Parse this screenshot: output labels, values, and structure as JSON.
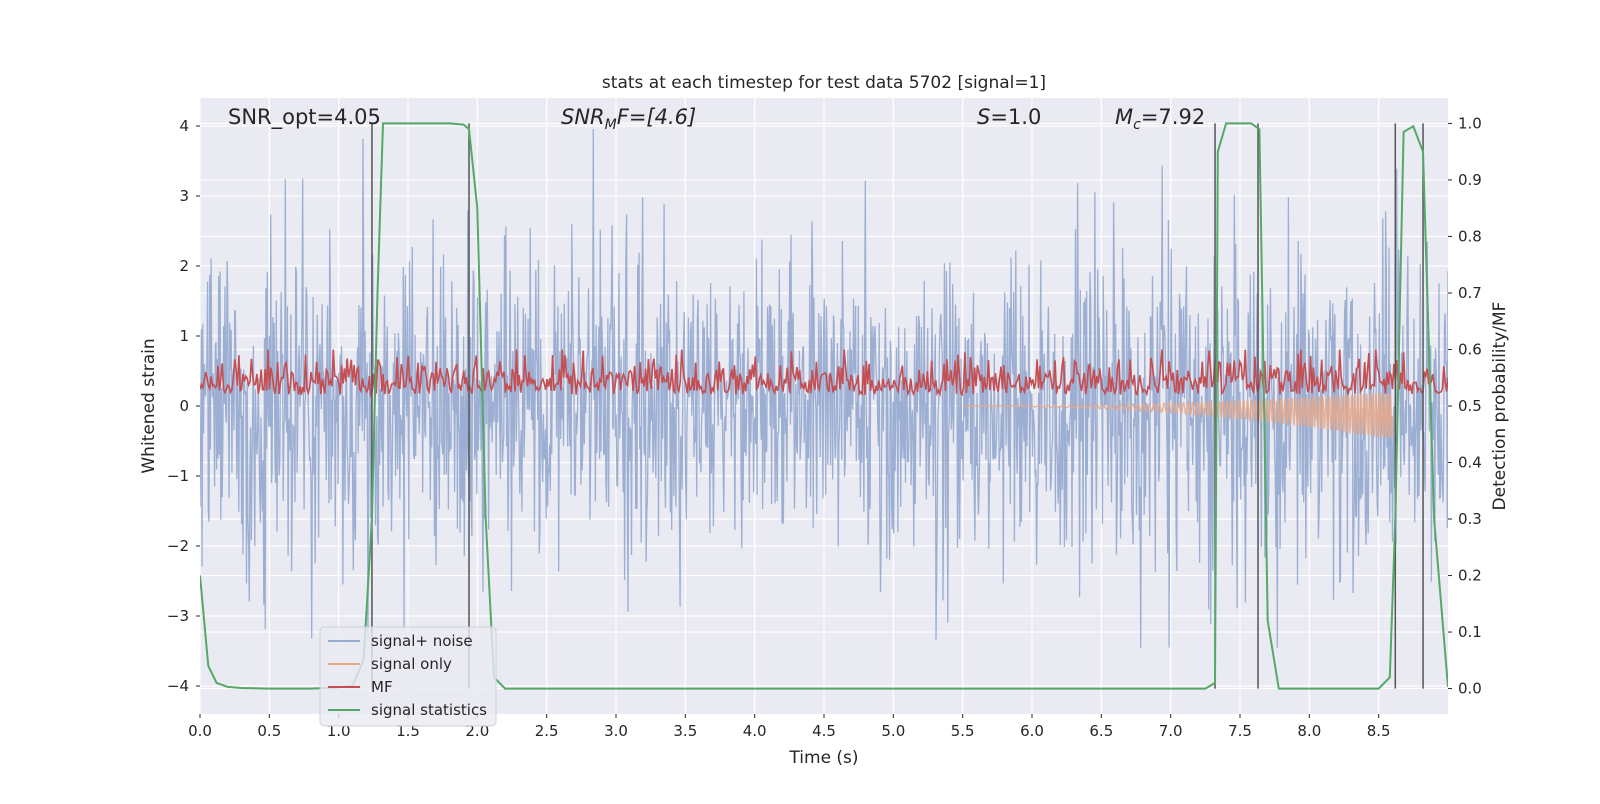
{
  "chart_data": {
    "type": "line",
    "title": "stats at each timestep for test data 5702 [signal=1]",
    "xlabel": "Time (s)",
    "ylabel": "Whitened strain",
    "y2label": "Detection probability/MF",
    "xlim": [
      0.0,
      9.0
    ],
    "ylim": [
      -4.4,
      4.4
    ],
    "y2lim": [
      -0.045,
      1.045
    ],
    "xticks": [
      0.0,
      0.5,
      1.0,
      1.5,
      2.0,
      2.5,
      3.0,
      3.5,
      4.0,
      4.5,
      5.0,
      5.5,
      6.0,
      6.5,
      7.0,
      7.5,
      8.0,
      8.5
    ],
    "xtick_labels": [
      "0.0",
      "0.5",
      "1.0",
      "1.5",
      "2.0",
      "2.5",
      "3.0",
      "3.5",
      "4.0",
      "4.5",
      "5.0",
      "5.5",
      "6.0",
      "6.5",
      "7.0",
      "7.5",
      "8.0",
      "8.5"
    ],
    "yticks": [
      4,
      3,
      2,
      1,
      0,
      -1,
      -2,
      -3,
      -4
    ],
    "ytick_labels": [
      "4",
      "3",
      "2",
      "1",
      "0",
      "−1",
      "−2",
      "−3",
      "−4"
    ],
    "y2ticks": [
      1.0,
      0.9,
      0.8,
      0.7,
      0.6,
      0.5,
      0.4,
      0.3,
      0.2,
      0.1,
      0.0
    ],
    "y2tick_labels": [
      "1.0",
      "0.9",
      "0.8",
      "0.7",
      "0.6",
      "0.5",
      "0.4",
      "0.3",
      "0.2",
      "0.1",
      "0.0"
    ],
    "grid": true,
    "annotations": {
      "snr_opt": "SNR_opt=4.05",
      "snr_mf_base": "SNR",
      "snr_mf_sub": "M",
      "snr_mf_rest": "F=[4.6]",
      "s_label": "S",
      "s_value": "=1.0",
      "mc_base": "M",
      "mc_sub": "c",
      "mc_value": "=7.92"
    },
    "legend": {
      "position": "lower-left",
      "entries": [
        "signal+ noise",
        "signal only",
        "MF",
        "signal statistics"
      ]
    },
    "colors": {
      "background": "#eaeaf2",
      "grid": "#ffffff",
      "noise": "#98acd1",
      "signal": "#e8a888",
      "mf": "#c44e52",
      "stat": "#55a868",
      "vline": "#555555"
    },
    "series": [
      {
        "name": "signal+ noise",
        "axis": "left",
        "description_values": "Gaussian whitened noise envelope, amplitude roughly -3.7 to 4.0 across 0-9 s",
        "peak_max": 4.0,
        "peak_min": -3.7
      },
      {
        "name": "signal only",
        "axis": "left",
        "chirp_start": 5.5,
        "chirp_end": 8.6,
        "final_amplitude": -0.35
      },
      {
        "name": "MF",
        "axis": "right",
        "baseline": 0.53,
        "range": [
          0.5,
          0.6
        ]
      },
      {
        "name": "signal statistics",
        "axis": "right",
        "x": [
          0.0,
          0.06,
          0.12,
          0.2,
          0.3,
          0.5,
          0.8,
          1.0,
          1.1,
          1.18,
          1.24,
          1.28,
          1.32,
          1.4,
          1.6,
          1.8,
          1.9,
          1.94,
          2.0,
          2.06,
          2.12,
          2.2,
          2.5,
          3.0,
          4.0,
          5.0,
          6.0,
          7.0,
          7.25,
          7.32,
          7.34,
          7.4,
          7.5,
          7.58,
          7.64,
          7.7,
          7.78,
          8.0,
          8.5,
          8.58,
          8.62,
          8.68,
          8.75,
          8.82,
          8.9,
          9.0
        ],
        "values": [
          0.2,
          0.04,
          0.01,
          0.003,
          0.001,
          0.0,
          0.0,
          0.002,
          0.005,
          0.05,
          0.3,
          0.7,
          1.0,
          1.0,
          1.0,
          1.0,
          0.998,
          0.99,
          0.85,
          0.3,
          0.02,
          0.0,
          0.0,
          0.0,
          0.0,
          0.0,
          0.0,
          0.0,
          0.0,
          0.01,
          0.95,
          1.0,
          1.0,
          1.0,
          0.99,
          0.12,
          0.0,
          0.0,
          0.0,
          0.02,
          0.3,
          0.985,
          0.995,
          0.95,
          0.3,
          0.003
        ]
      }
    ],
    "vlines_x": [
      1.24,
      1.94,
      7.32,
      7.63,
      8.62,
      8.82
    ]
  }
}
